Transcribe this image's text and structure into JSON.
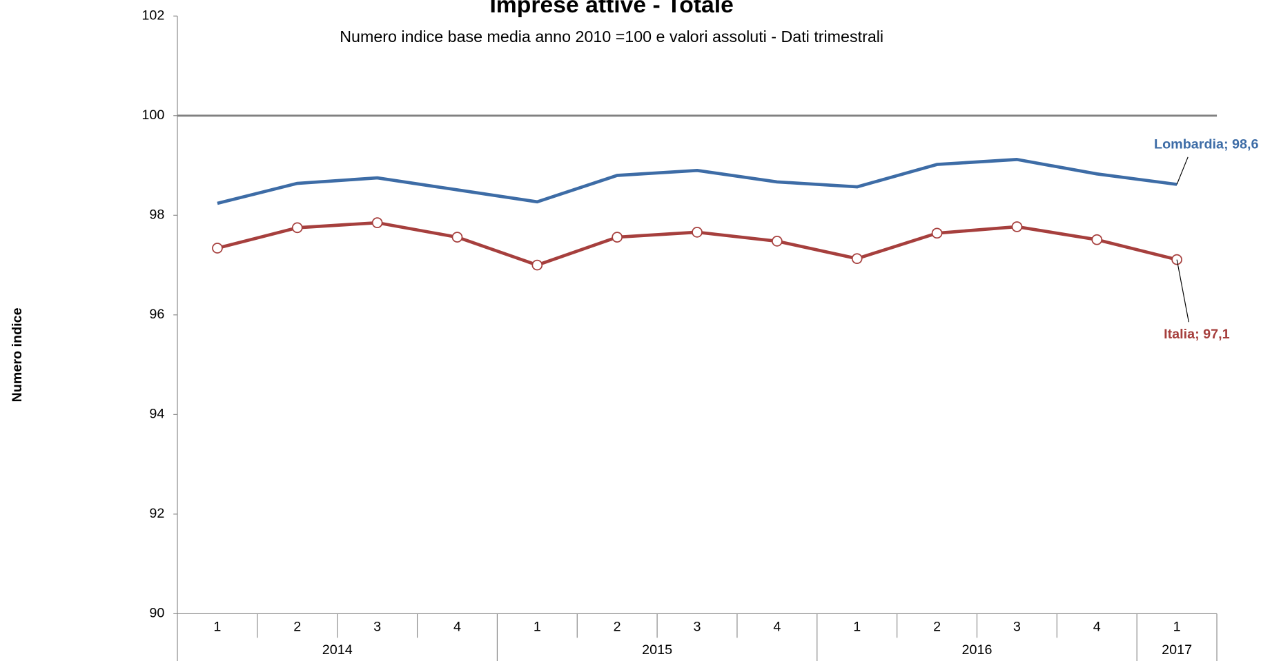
{
  "chart_data": {
    "type": "line",
    "title": "Imprese attive - Totale",
    "subtitle": "Numero indice base media anno 2010 =100 e valori assoluti - Dati trimestrali",
    "y_label": "Numero indice",
    "categories": [
      "1",
      "2",
      "3",
      "4",
      "1",
      "2",
      "3",
      "4",
      "1",
      "2",
      "3",
      "4",
      "1"
    ],
    "x_groups": [
      {
        "label": "2014",
        "size": 4
      },
      {
        "label": "2015",
        "size": 4
      },
      {
        "label": "2016",
        "size": 4
      },
      {
        "label": "2017",
        "size": 1
      }
    ],
    "series": [
      {
        "name": "Lombardia",
        "color": "#3d6ca6",
        "marker": false,
        "values": [
          98.24,
          98.64,
          98.75,
          98.51,
          98.27,
          98.8,
          98.9,
          98.67,
          98.57,
          99.02,
          99.12,
          98.83,
          98.62
        ]
      },
      {
        "name": "Italia",
        "color": "#a63f3d",
        "marker": true,
        "values": [
          97.34,
          97.75,
          97.85,
          97.56,
          97.0,
          97.56,
          97.66,
          97.48,
          97.13,
          97.64,
          97.77,
          97.51,
          97.11
        ]
      }
    ],
    "annotations": [
      "Lombardia; 98,6",
      "Italia; 97,1"
    ],
    "ylim": [
      90,
      102
    ],
    "yticks": [
      90,
      92,
      94,
      96,
      98,
      100,
      102
    ],
    "reference_line": 100,
    "grid": false
  }
}
